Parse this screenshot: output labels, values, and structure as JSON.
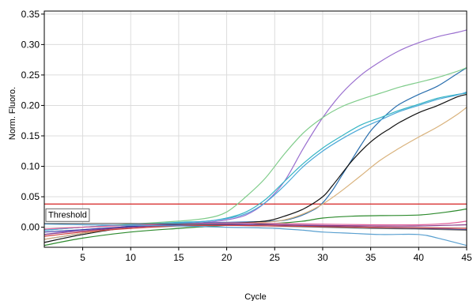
{
  "chart_data": {
    "type": "line",
    "title": "",
    "xlabel": "Cycle",
    "ylabel": "Norm. Fluoro.",
    "xlim": [
      1,
      45
    ],
    "ylim": [
      -0.033,
      0.355
    ],
    "grid": true,
    "legend": "none",
    "x_ticks": [
      5,
      10,
      15,
      20,
      25,
      30,
      35,
      40,
      45
    ],
    "x_tick_labels": [
      "5",
      "10",
      "15",
      "20",
      "25",
      "30",
      "35",
      "40",
      "45"
    ],
    "y_ticks": [
      0,
      0.05,
      0.1,
      0.15,
      0.2,
      0.25,
      0.3,
      0.35
    ],
    "y_tick_labels": [
      "0.00",
      "0.05",
      "0.10",
      "0.15",
      "0.20",
      "0.25",
      "0.30",
      "0.35"
    ],
    "threshold": {
      "label": "Threshold",
      "value": 0.038,
      "color": "#d42020"
    },
    "series": [
      {
        "color": "#9a6fcf",
        "points": [
          [
            1,
            -0.012
          ],
          [
            5,
            -0.004
          ],
          [
            10,
            0.0
          ],
          [
            15,
            0.005
          ],
          [
            18,
            0.008
          ],
          [
            20,
            0.012
          ],
          [
            22,
            0.02
          ],
          [
            24,
            0.04
          ],
          [
            26,
            0.075
          ],
          [
            28,
            0.13
          ],
          [
            30,
            0.18
          ],
          [
            32,
            0.22
          ],
          [
            34,
            0.25
          ],
          [
            36,
            0.272
          ],
          [
            38,
            0.29
          ],
          [
            40,
            0.303
          ],
          [
            42,
            0.313
          ],
          [
            44,
            0.32
          ],
          [
            45,
            0.324
          ]
        ]
      },
      {
        "color": "#2a6fae",
        "points": [
          [
            1,
            -0.02
          ],
          [
            5,
            -0.01
          ],
          [
            10,
            0.002
          ],
          [
            15,
            0.006
          ],
          [
            20,
            0.008
          ],
          [
            25,
            0.01
          ],
          [
            27,
            0.015
          ],
          [
            29,
            0.028
          ],
          [
            30,
            0.04
          ],
          [
            31,
            0.06
          ],
          [
            32,
            0.085
          ],
          [
            33,
            0.11
          ],
          [
            34,
            0.135
          ],
          [
            35,
            0.158
          ],
          [
            36,
            0.175
          ],
          [
            37,
            0.19
          ],
          [
            38,
            0.202
          ],
          [
            40,
            0.218
          ],
          [
            42,
            0.232
          ],
          [
            44,
            0.252
          ],
          [
            45,
            0.262
          ]
        ]
      },
      {
        "color": "#7fcc8a",
        "points": [
          [
            1,
            -0.005
          ],
          [
            5,
            0.0
          ],
          [
            10,
            0.005
          ],
          [
            15,
            0.01
          ],
          [
            18,
            0.015
          ],
          [
            20,
            0.025
          ],
          [
            22,
            0.05
          ],
          [
            24,
            0.08
          ],
          [
            26,
            0.12
          ],
          [
            28,
            0.155
          ],
          [
            30,
            0.18
          ],
          [
            32,
            0.198
          ],
          [
            34,
            0.21
          ],
          [
            36,
            0.22
          ],
          [
            38,
            0.23
          ],
          [
            40,
            0.238
          ],
          [
            42,
            0.246
          ],
          [
            44,
            0.256
          ],
          [
            45,
            0.262
          ]
        ]
      },
      {
        "color": "#36b5c4",
        "points": [
          [
            1,
            -0.005
          ],
          [
            5,
            0.0
          ],
          [
            10,
            0.004
          ],
          [
            15,
            0.008
          ],
          [
            18,
            0.01
          ],
          [
            20,
            0.015
          ],
          [
            22,
            0.025
          ],
          [
            24,
            0.045
          ],
          [
            26,
            0.075
          ],
          [
            28,
            0.105
          ],
          [
            30,
            0.13
          ],
          [
            32,
            0.15
          ],
          [
            34,
            0.168
          ],
          [
            36,
            0.18
          ],
          [
            38,
            0.192
          ],
          [
            40,
            0.202
          ],
          [
            42,
            0.212
          ],
          [
            44,
            0.218
          ],
          [
            45,
            0.22
          ]
        ]
      },
      {
        "color": "#4aa8d8",
        "points": [
          [
            1,
            -0.005
          ],
          [
            5,
            0.0
          ],
          [
            10,
            0.004
          ],
          [
            15,
            0.007
          ],
          [
            18,
            0.01
          ],
          [
            20,
            0.014
          ],
          [
            22,
            0.022
          ],
          [
            24,
            0.04
          ],
          [
            26,
            0.068
          ],
          [
            28,
            0.1
          ],
          [
            30,
            0.125
          ],
          [
            32,
            0.145
          ],
          [
            34,
            0.162
          ],
          [
            36,
            0.176
          ],
          [
            38,
            0.19
          ],
          [
            40,
            0.2
          ],
          [
            42,
            0.21
          ],
          [
            44,
            0.217
          ],
          [
            45,
            0.222
          ]
        ]
      },
      {
        "color": "#111111",
        "points": [
          [
            1,
            -0.025
          ],
          [
            5,
            -0.012
          ],
          [
            10,
            0.0
          ],
          [
            15,
            0.003
          ],
          [
            20,
            0.006
          ],
          [
            24,
            0.01
          ],
          [
            26,
            0.018
          ],
          [
            28,
            0.03
          ],
          [
            30,
            0.05
          ],
          [
            31,
            0.068
          ],
          [
            32,
            0.088
          ],
          [
            33,
            0.108
          ],
          [
            34,
            0.125
          ],
          [
            35,
            0.14
          ],
          [
            36,
            0.152
          ],
          [
            37,
            0.162
          ],
          [
            38,
            0.172
          ],
          [
            40,
            0.188
          ],
          [
            42,
            0.2
          ],
          [
            44,
            0.214
          ],
          [
            45,
            0.218
          ]
        ]
      },
      {
        "color": "#d9b27c",
        "points": [
          [
            1,
            -0.02
          ],
          [
            5,
            -0.01
          ],
          [
            10,
            0.0
          ],
          [
            15,
            0.004
          ],
          [
            20,
            0.006
          ],
          [
            24,
            0.008
          ],
          [
            26,
            0.012
          ],
          [
            28,
            0.022
          ],
          [
            30,
            0.038
          ],
          [
            32,
            0.06
          ],
          [
            34,
            0.085
          ],
          [
            36,
            0.11
          ],
          [
            38,
            0.13
          ],
          [
            40,
            0.148
          ],
          [
            42,
            0.165
          ],
          [
            44,
            0.185
          ],
          [
            45,
            0.197
          ]
        ]
      },
      {
        "color": "#2e8b2e",
        "points": [
          [
            1,
            -0.03
          ],
          [
            5,
            -0.018
          ],
          [
            10,
            -0.008
          ],
          [
            15,
            -0.002
          ],
          [
            20,
            0.003
          ],
          [
            25,
            0.006
          ],
          [
            28,
            0.01
          ],
          [
            30,
            0.015
          ],
          [
            33,
            0.018
          ],
          [
            36,
            0.019
          ],
          [
            40,
            0.02
          ],
          [
            43,
            0.025
          ],
          [
            45,
            0.03
          ]
        ]
      },
      {
        "color": "#e0609a",
        "points": [
          [
            1,
            -0.003
          ],
          [
            5,
            0.0
          ],
          [
            10,
            0.003
          ],
          [
            15,
            0.005
          ],
          [
            20,
            0.007
          ],
          [
            25,
            0.006
          ],
          [
            30,
            0.005
          ],
          [
            35,
            0.004
          ],
          [
            40,
            0.004
          ],
          [
            43,
            0.006
          ],
          [
            45,
            0.01
          ]
        ]
      },
      {
        "color": "#2f3aa8",
        "points": [
          [
            1,
            -0.008
          ],
          [
            5,
            -0.004
          ],
          [
            10,
            0.001
          ],
          [
            15,
            0.004
          ],
          [
            20,
            0.005
          ],
          [
            25,
            0.004
          ],
          [
            30,
            0.002
          ],
          [
            35,
            0.0
          ],
          [
            40,
            -0.002
          ],
          [
            45,
            -0.004
          ]
        ]
      },
      {
        "color": "#8a3a8a",
        "points": [
          [
            1,
            -0.012
          ],
          [
            5,
            -0.006
          ],
          [
            10,
            0.0
          ],
          [
            15,
            0.003
          ],
          [
            20,
            0.004
          ],
          [
            25,
            0.004
          ],
          [
            30,
            0.003
          ],
          [
            35,
            0.002
          ],
          [
            40,
            0.002
          ],
          [
            45,
            0.004
          ]
        ]
      },
      {
        "color": "#6a6a6a",
        "points": [
          [
            1,
            0.006
          ],
          [
            5,
            0.006
          ],
          [
            10,
            0.006
          ],
          [
            15,
            0.005
          ],
          [
            20,
            0.003
          ],
          [
            25,
            0.002
          ],
          [
            30,
            0.0
          ],
          [
            35,
            -0.002
          ],
          [
            40,
            -0.003
          ],
          [
            45,
            -0.005
          ]
        ]
      },
      {
        "color": "#d04040",
        "points": [
          [
            1,
            -0.015
          ],
          [
            5,
            -0.008
          ],
          [
            10,
            -0.002
          ],
          [
            15,
            0.002
          ],
          [
            20,
            0.003
          ],
          [
            25,
            0.002
          ],
          [
            30,
            0.001
          ],
          [
            35,
            0.0
          ],
          [
            40,
            -0.001
          ],
          [
            45,
            -0.002
          ]
        ]
      },
      {
        "color": "#5aa0d0",
        "points": [
          [
            1,
            0.005
          ],
          [
            5,
            0.004
          ],
          [
            10,
            0.003
          ],
          [
            15,
            0.002
          ],
          [
            20,
            0.0
          ],
          [
            25,
            -0.002
          ],
          [
            28,
            -0.005
          ],
          [
            30,
            -0.008
          ],
          [
            33,
            -0.01
          ],
          [
            36,
            -0.012
          ],
          [
            40,
            -0.012
          ],
          [
            42,
            -0.018
          ],
          [
            45,
            -0.03
          ]
        ]
      }
    ]
  }
}
